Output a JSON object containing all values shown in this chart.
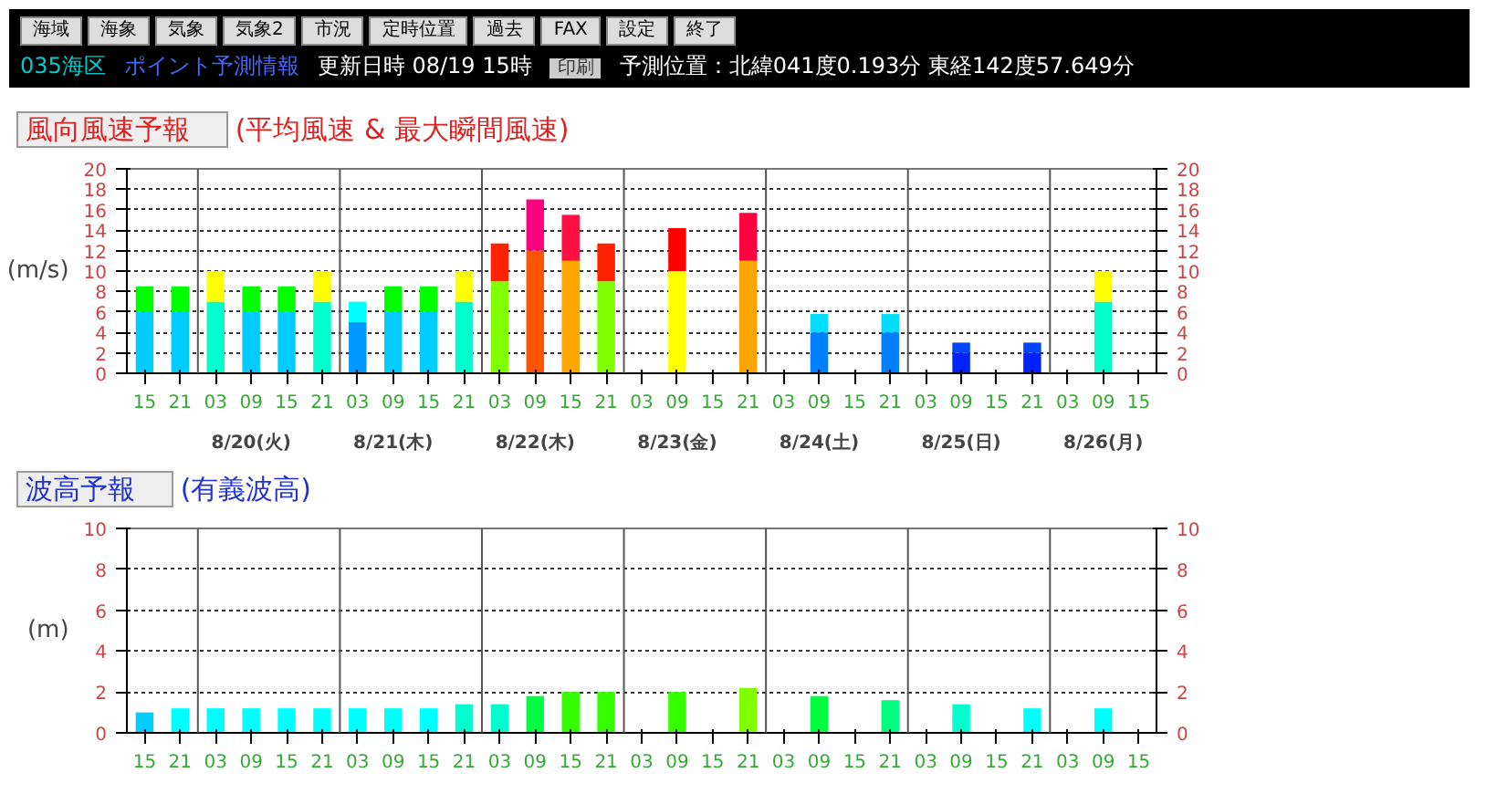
{
  "chart_data": [
    {
      "type": "other",
      "annotations": [
        "海域",
        "海象",
        "気象",
        "気象2",
        "市況",
        "定時位置",
        "過去",
        "FAX",
        "設定",
        "終了",
        "035海区",
        "ポイント予測情報",
        "更新日時 08/19 15時",
        "印刷",
        "予測位置：北緯041度0.193分 東経142度57.649分"
      ]
    },
    {
      "type": "bar",
      "title": "風向風速予報",
      "subtitle": "(平均風速 & 最大瞬間風速)",
      "ylabel": "(m/s)",
      "stacked": true,
      "grid": "y",
      "categories": [
        "15",
        "21",
        "03",
        "09",
        "15",
        "21",
        "03",
        "09",
        "15",
        "21",
        "03",
        "09",
        "15",
        "21",
        "03",
        "09",
        "15",
        "21",
        "03",
        "09",
        "15",
        "21",
        "03",
        "09",
        "15",
        "21",
        "03",
        "09",
        "15"
      ],
      "series": [
        {
          "colors": [
            "#00ccff",
            "#00ccff",
            "#00ffcc",
            "#00ccff",
            "#00ccff",
            "#00ffcc",
            "#0099ff",
            "#00ccff",
            "#00ccff",
            "#00ffcc",
            "#80ff00",
            "#ff5500",
            "#ffa500",
            "#80ff00",
            null,
            "#ffff00",
            null,
            "#ffa500",
            null,
            "#0080ff",
            null,
            "#0080ff",
            null,
            "#0022ff",
            null,
            "#0022ff",
            null,
            "#00ffcc",
            null
          ],
          "values": [
            6,
            6,
            7,
            6,
            6,
            7,
            5,
            6,
            6,
            7,
            9,
            12,
            11,
            9,
            null,
            10,
            null,
            11,
            null,
            4,
            null,
            4,
            null,
            2,
            null,
            2,
            null,
            7,
            null
          ]
        },
        {
          "colors": [
            "#00ff00",
            "#00ff00",
            "#ffff00",
            "#00ff00",
            "#00ff00",
            "#ffff00",
            "#00ffff",
            "#00ff00",
            "#00ff00",
            "#ffff00",
            "#ff2200",
            "#ff0080",
            "#ff1040",
            "#ff2200",
            null,
            "#ff0000",
            null,
            "#ff0040",
            null,
            "#00ddff",
            null,
            "#00ddff",
            null,
            "#0044ff",
            null,
            "#0044ff",
            null,
            "#ffff00",
            null
          ],
          "values": [
            2.5,
            2.5,
            3,
            2.5,
            2.5,
            3,
            2,
            2.5,
            2.5,
            3,
            3.7,
            5,
            4.5,
            3.7,
            null,
            4.2,
            null,
            4.7,
            null,
            1.8,
            null,
            1.8,
            null,
            1,
            null,
            1,
            null,
            3,
            null
          ]
        }
      ],
      "ylim": [
        0,
        20
      ],
      "yticks": [
        0,
        2,
        4,
        6,
        8,
        10,
        12,
        14,
        16,
        18,
        20
      ],
      "y2lim": [
        0,
        20
      ],
      "y2ticks": [
        0,
        2,
        4,
        6,
        8,
        10,
        12,
        14,
        16,
        18,
        20
      ],
      "annotations": [
        "8/20(火)",
        "8/21(木)",
        "8/22(木)",
        "8/23(金)",
        "8/24(土)",
        "8/25(日)",
        "8/26(月)"
      ]
    },
    {
      "type": "bar",
      "title": "波高予報",
      "subtitle": "(有義波高)",
      "ylabel": "(m)",
      "grid": "y",
      "categories": [
        "15",
        "21",
        "03",
        "09",
        "15",
        "21",
        "03",
        "09",
        "15",
        "21",
        "03",
        "09",
        "15",
        "21",
        "03",
        "09",
        "15",
        "21",
        "03",
        "09",
        "15",
        "21",
        "03",
        "09",
        "15",
        "21",
        "03",
        "09",
        "15"
      ],
      "colors": [
        "#00ccff",
        "#00ffff",
        "#00ffff",
        "#00ffff",
        "#00ffff",
        "#00ffff",
        "#00ffff",
        "#00ffff",
        "#00ffff",
        "#00ffcc",
        "#00ffcc",
        "#00ff40",
        "#33ff00",
        "#33ff00",
        null,
        "#33ff00",
        null,
        "#80ff00",
        null,
        "#00ff40",
        null,
        "#00ff80",
        null,
        "#00ffcc",
        null,
        "#00ffff",
        null,
        "#00ffff",
        null
      ],
      "values": [
        1.0,
        1.2,
        1.2,
        1.2,
        1.2,
        1.2,
        1.2,
        1.2,
        1.2,
        1.4,
        1.4,
        1.8,
        2.0,
        2.0,
        null,
        2.0,
        null,
        2.2,
        null,
        1.8,
        null,
        1.6,
        null,
        1.4,
        null,
        1.2,
        null,
        1.2,
        null
      ],
      "ylim": [
        0,
        10
      ],
      "yticks": [
        0,
        2,
        4,
        6,
        8,
        10
      ],
      "y2lim": [
        0,
        10
      ],
      "y2ticks": [
        0,
        2,
        4,
        6,
        8,
        10
      ]
    }
  ]
}
